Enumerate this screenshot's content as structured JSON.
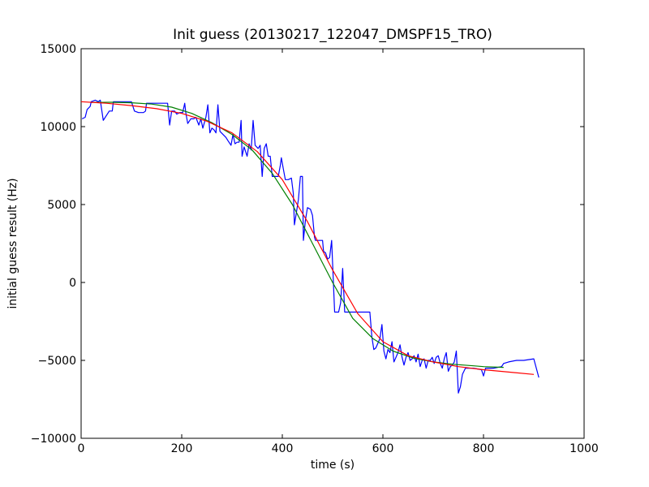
{
  "chart_data": {
    "type": "line",
    "title": "Init guess (20130217_122047_DMSPF15_TRO)",
    "xlabel": "time (s)",
    "ylabel": "initial guess result (Hz)",
    "xlim": [
      0,
      1000
    ],
    "ylim": [
      -10000,
      15000
    ],
    "xticks": [
      0,
      200,
      400,
      600,
      800,
      1000
    ],
    "yticks": [
      -10000,
      -5000,
      0,
      5000,
      10000,
      15000
    ],
    "xtick_labels": [
      "0",
      "200",
      "400",
      "600",
      "800",
      "1000"
    ],
    "ytick_labels": [
      "−10000",
      "−5000",
      "0",
      "5000",
      "10000",
      "15000"
    ],
    "grid": false,
    "legend": "none",
    "series": [
      {
        "color": "#0000ff",
        "points": [
          [
            2,
            10500
          ],
          [
            8,
            10600
          ],
          [
            12,
            11100
          ],
          [
            18,
            11300
          ],
          [
            20,
            11600
          ],
          [
            28,
            11700
          ],
          [
            34,
            11600
          ],
          [
            38,
            11700
          ],
          [
            44,
            10400
          ],
          [
            50,
            10700
          ],
          [
            56,
            11000
          ],
          [
            62,
            11000
          ],
          [
            64,
            11600
          ],
          [
            82,
            11600
          ],
          [
            100,
            11600
          ],
          [
            106,
            11000
          ],
          [
            114,
            10900
          ],
          [
            124,
            10900
          ],
          [
            128,
            11000
          ],
          [
            130,
            11500
          ],
          [
            148,
            11500
          ],
          [
            158,
            11500
          ],
          [
            172,
            11500
          ],
          [
            176,
            10100
          ],
          [
            180,
            11000
          ],
          [
            186,
            11000
          ],
          [
            190,
            10800
          ],
          [
            196,
            10900
          ],
          [
            202,
            10900
          ],
          [
            206,
            11500
          ],
          [
            208,
            10900
          ],
          [
            212,
            10200
          ],
          [
            218,
            10500
          ],
          [
            224,
            10500
          ],
          [
            228,
            10600
          ],
          [
            234,
            10100
          ],
          [
            238,
            10500
          ],
          [
            242,
            9900
          ],
          [
            248,
            10600
          ],
          [
            252,
            11400
          ],
          [
            256,
            9600
          ],
          [
            260,
            9900
          ],
          [
            264,
            9800
          ],
          [
            268,
            9600
          ],
          [
            272,
            11400
          ],
          [
            276,
            9700
          ],
          [
            282,
            9500
          ],
          [
            288,
            9300
          ],
          [
            292,
            9100
          ],
          [
            298,
            8800
          ],
          [
            302,
            9500
          ],
          [
            306,
            8900
          ],
          [
            310,
            9000
          ],
          [
            314,
            9000
          ],
          [
            318,
            10400
          ],
          [
            320,
            8100
          ],
          [
            324,
            8700
          ],
          [
            330,
            8100
          ],
          [
            334,
            8900
          ],
          [
            338,
            8500
          ],
          [
            342,
            10400
          ],
          [
            346,
            8800
          ],
          [
            352,
            8600
          ],
          [
            356,
            8800
          ],
          [
            360,
            6800
          ],
          [
            364,
            8600
          ],
          [
            368,
            8900
          ],
          [
            372,
            8100
          ],
          [
            376,
            8100
          ],
          [
            380,
            6800
          ],
          [
            386,
            6800
          ],
          [
            392,
            6800
          ],
          [
            396,
            7500
          ],
          [
            398,
            8000
          ],
          [
            402,
            7300
          ],
          [
            406,
            6600
          ],
          [
            412,
            6600
          ],
          [
            418,
            6700
          ],
          [
            422,
            5700
          ],
          [
            424,
            3700
          ],
          [
            428,
            4500
          ],
          [
            432,
            5300
          ],
          [
            436,
            6800
          ],
          [
            440,
            6800
          ],
          [
            442,
            2700
          ],
          [
            446,
            4000
          ],
          [
            450,
            4800
          ],
          [
            456,
            4700
          ],
          [
            460,
            4300
          ],
          [
            464,
            2900
          ],
          [
            466,
            2700
          ],
          [
            470,
            2700
          ],
          [
            480,
            2700
          ],
          [
            482,
            2000
          ],
          [
            486,
            1900
          ],
          [
            490,
            1500
          ],
          [
            494,
            1600
          ],
          [
            498,
            2700
          ],
          [
            500,
            1200
          ],
          [
            504,
            -1900
          ],
          [
            512,
            -1900
          ],
          [
            516,
            -1300
          ],
          [
            520,
            900
          ],
          [
            524,
            -1900
          ],
          [
            532,
            -1900
          ],
          [
            556,
            -1900
          ],
          [
            574,
            -1900
          ],
          [
            578,
            -3500
          ],
          [
            582,
            -4300
          ],
          [
            586,
            -4200
          ],
          [
            590,
            -3900
          ],
          [
            594,
            -3600
          ],
          [
            598,
            -2700
          ],
          [
            602,
            -4400
          ],
          [
            606,
            -4900
          ],
          [
            610,
            -4300
          ],
          [
            614,
            -4500
          ],
          [
            618,
            -3800
          ],
          [
            622,
            -5100
          ],
          [
            626,
            -4800
          ],
          [
            630,
            -4500
          ],
          [
            634,
            -4000
          ],
          [
            638,
            -4800
          ],
          [
            642,
            -5300
          ],
          [
            646,
            -4800
          ],
          [
            650,
            -4500
          ],
          [
            654,
            -5000
          ],
          [
            658,
            -4900
          ],
          [
            662,
            -4700
          ],
          [
            666,
            -5100
          ],
          [
            670,
            -4600
          ],
          [
            674,
            -5400
          ],
          [
            678,
            -5000
          ],
          [
            682,
            -4900
          ],
          [
            686,
            -5500
          ],
          [
            690,
            -5000
          ],
          [
            694,
            -5000
          ],
          [
            698,
            -4800
          ],
          [
            702,
            -5200
          ],
          [
            706,
            -4800
          ],
          [
            710,
            -4700
          ],
          [
            714,
            -5200
          ],
          [
            718,
            -5500
          ],
          [
            722,
            -4900
          ],
          [
            726,
            -4500
          ],
          [
            730,
            -5700
          ],
          [
            734,
            -5400
          ],
          [
            738,
            -5300
          ],
          [
            742,
            -5100
          ],
          [
            746,
            -4400
          ],
          [
            750,
            -7100
          ],
          [
            754,
            -6700
          ],
          [
            758,
            -5900
          ],
          [
            764,
            -5500
          ],
          [
            772,
            -5500
          ],
          [
            780,
            -5500
          ],
          [
            796,
            -5600
          ],
          [
            800,
            -6000
          ],
          [
            804,
            -5500
          ],
          [
            812,
            -5500
          ],
          [
            820,
            -5500
          ],
          [
            836,
            -5400
          ],
          [
            840,
            -5200
          ],
          [
            850,
            -5100
          ],
          [
            866,
            -5000
          ],
          [
            880,
            -5000
          ],
          [
            900,
            -4900
          ],
          [
            910,
            -6100
          ]
        ]
      },
      {
        "color": "#008000",
        "points": [
          [
            20,
            11550
          ],
          [
            60,
            11560
          ],
          [
            100,
            11530
          ],
          [
            140,
            11450
          ],
          [
            180,
            11250
          ],
          [
            220,
            10850
          ],
          [
            260,
            10250
          ],
          [
            300,
            9500
          ],
          [
            340,
            8500
          ],
          [
            380,
            7000
          ],
          [
            420,
            5000
          ],
          [
            460,
            2500
          ],
          [
            500,
            0
          ],
          [
            540,
            -2300
          ],
          [
            580,
            -3600
          ],
          [
            620,
            -4400
          ],
          [
            660,
            -4850
          ],
          [
            700,
            -5100
          ],
          [
            740,
            -5250
          ],
          [
            780,
            -5350
          ],
          [
            800,
            -5400
          ],
          [
            840,
            -5450
          ]
        ]
      },
      {
        "color": "#ff0000",
        "points": [
          [
            0,
            11600
          ],
          [
            50,
            11500
          ],
          [
            100,
            11350
          ],
          [
            150,
            11150
          ],
          [
            200,
            10850
          ],
          [
            250,
            10350
          ],
          [
            300,
            9600
          ],
          [
            350,
            8400
          ],
          [
            400,
            6600
          ],
          [
            450,
            3900
          ],
          [
            500,
            800
          ],
          [
            550,
            -2000
          ],
          [
            600,
            -3800
          ],
          [
            650,
            -4700
          ],
          [
            700,
            -5100
          ],
          [
            750,
            -5400
          ],
          [
            800,
            -5600
          ],
          [
            850,
            -5750
          ],
          [
            900,
            -5900
          ]
        ]
      }
    ]
  }
}
